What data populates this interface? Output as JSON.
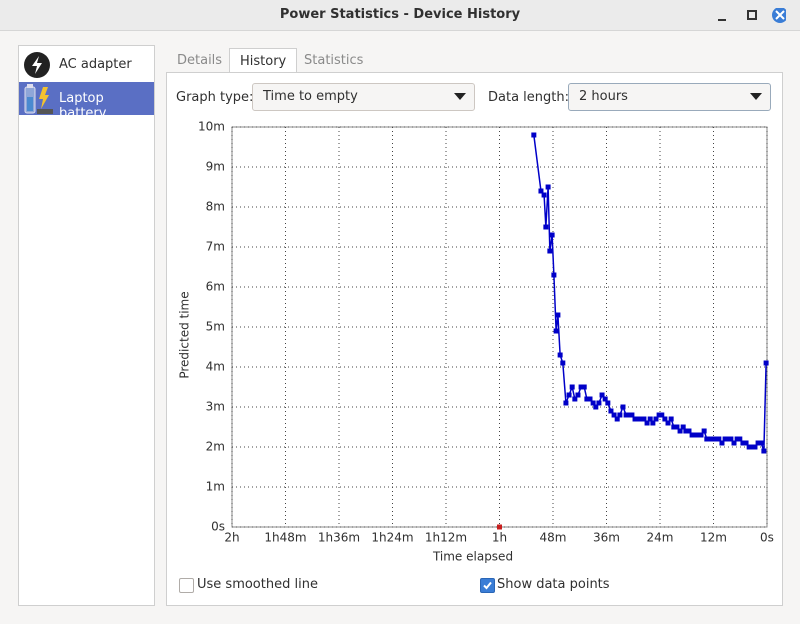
{
  "window": {
    "title": "Power Statistics - Device History"
  },
  "devices": [
    {
      "label": "AC adapter"
    },
    {
      "label": "Laptop battery"
    }
  ],
  "tabs": [
    {
      "label": "Details"
    },
    {
      "label": "History"
    },
    {
      "label": "Statistics"
    }
  ],
  "controls": {
    "graph_type_label": "Graph type:",
    "graph_type": "Time to empty",
    "data_length_label": "Data length:",
    "data_length": "2 hours"
  },
  "chart_data": {
    "type": "line",
    "y_label": "Predicted time",
    "x_label": "Time elapsed",
    "xlim": [
      120,
      0
    ],
    "ylim": [
      0,
      10
    ],
    "grid": true,
    "xticks": [
      {
        "value": 120,
        "label": "2h"
      },
      {
        "value": 108,
        "label": "1h48m"
      },
      {
        "value": 96,
        "label": "1h36m"
      },
      {
        "value": 84,
        "label": "1h24m"
      },
      {
        "value": 72,
        "label": "1h12m"
      },
      {
        "value": 60,
        "label": "1h"
      },
      {
        "value": 48,
        "label": "48m"
      },
      {
        "value": 36,
        "label": "36m"
      },
      {
        "value": 24,
        "label": "24m"
      },
      {
        "value": 12,
        "label": "12m"
      },
      {
        "value": 0,
        "label": "0s"
      }
    ],
    "yticks": [
      {
        "value": 0,
        "label": "0s"
      },
      {
        "value": 1,
        "label": "1m"
      },
      {
        "value": 2,
        "label": "2m"
      },
      {
        "value": 3,
        "label": "3m"
      },
      {
        "value": 4,
        "label": "4m"
      },
      {
        "value": 5,
        "label": "5m"
      },
      {
        "value": 6,
        "label": "6m"
      },
      {
        "value": 7,
        "label": "7m"
      },
      {
        "value": 8,
        "label": "8m"
      },
      {
        "value": 9,
        "label": "9m"
      },
      {
        "value": 10,
        "label": "10m"
      }
    ],
    "series": [
      {
        "color": "#0000c8",
        "x": [
          52.3,
          50.7,
          50.0,
          49.6,
          49.1,
          48.7,
          48.2,
          47.8,
          47.3,
          46.9,
          46.4,
          45.8,
          45.1,
          44.4,
          43.7,
          43.1,
          42.4,
          41.7,
          41.0,
          40.4,
          39.7,
          39.0,
          38.4,
          37.7,
          37.0,
          36.3,
          35.7,
          35.0,
          34.3,
          33.6,
          33.0,
          32.3,
          31.6,
          30.9,
          30.3,
          29.6,
          28.9,
          28.3,
          27.6,
          26.9,
          26.2,
          25.6,
          24.9,
          24.2,
          23.6,
          22.9,
          22.2,
          21.5,
          20.9,
          20.2,
          19.5,
          18.8,
          18.2,
          17.5,
          16.8,
          16.2,
          15.5,
          14.8,
          14.1,
          13.5,
          12.8,
          12.1,
          11.4,
          10.8,
          10.1,
          9.4,
          8.7,
          8.1,
          7.4,
          6.7,
          6.1,
          5.4,
          4.7,
          4.0,
          3.4,
          2.7,
          2.0,
          1.3,
          0.7,
          0.2
        ],
        "values": [
          9.8,
          8.4,
          8.3,
          7.5,
          8.5,
          6.9,
          7.3,
          6.3,
          4.9,
          5.3,
          4.3,
          4.1,
          3.1,
          3.3,
          3.5,
          3.2,
          3.3,
          3.5,
          3.5,
          3.2,
          3.2,
          3.1,
          3.0,
          3.1,
          3.3,
          3.2,
          3.1,
          2.9,
          2.8,
          2.7,
          2.8,
          3.0,
          2.8,
          2.8,
          2.8,
          2.7,
          2.7,
          2.7,
          2.7,
          2.6,
          2.7,
          2.6,
          2.7,
          2.8,
          2.8,
          2.7,
          2.6,
          2.7,
          2.5,
          2.5,
          2.4,
          2.5,
          2.4,
          2.4,
          2.3,
          2.3,
          2.3,
          2.3,
          2.4,
          2.2,
          2.2,
          2.2,
          2.2,
          2.2,
          2.1,
          2.2,
          2.2,
          2.2,
          2.1,
          2.2,
          2.2,
          2.1,
          2.1,
          2.0,
          2.0,
          2.0,
          2.1,
          2.1,
          1.9,
          4.1
        ]
      },
      {
        "color": "#c81e1e",
        "x": [
          60
        ],
        "values": [
          0
        ]
      }
    ]
  },
  "options": [
    {
      "label": "Use smoothed line",
      "checked": false
    },
    {
      "label": "Show data points",
      "checked": true
    }
  ]
}
